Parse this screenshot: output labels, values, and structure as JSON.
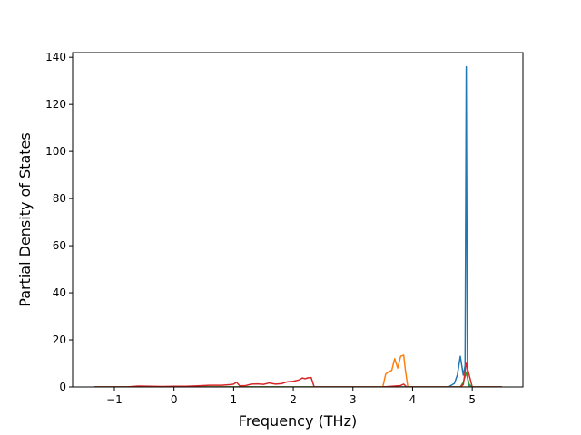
{
  "chart_data": {
    "type": "line",
    "title": "",
    "xlabel": "Frequency (THz)",
    "ylabel": "Partial Density of States",
    "xlim": [
      -1.7,
      5.85
    ],
    "ylim": [
      0,
      142
    ],
    "xticks": [
      -1,
      0,
      1,
      2,
      3,
      4,
      5
    ],
    "yticks": [
      0,
      20,
      40,
      60,
      80,
      100,
      120,
      140
    ],
    "xtick_labels": [
      "−1",
      "0",
      "1",
      "2",
      "3",
      "4",
      "5"
    ],
    "ytick_labels": [
      "0",
      "20",
      "40",
      "60",
      "80",
      "100",
      "120",
      "140"
    ],
    "grid": false,
    "legend": "none",
    "series": [
      {
        "color": "#1f77b4",
        "x": [
          -1.35,
          3.0,
          4.6,
          4.7,
          4.75,
          4.8,
          4.85,
          4.88,
          4.9,
          4.92,
          4.95,
          5.0,
          5.5
        ],
        "y": [
          0,
          0,
          0,
          1.5,
          5,
          13,
          5,
          9,
          136,
          4,
          0,
          0,
          0
        ]
      },
      {
        "color": "#ff7f0e",
        "x": [
          -1.35,
          3.4,
          3.5,
          3.55,
          3.6,
          3.65,
          3.7,
          3.75,
          3.8,
          3.85,
          3.88,
          3.92,
          5.5
        ],
        "y": [
          0,
          0,
          0,
          5.5,
          6.5,
          7,
          12,
          8,
          13,
          13.5,
          7,
          0,
          0
        ]
      },
      {
        "color": "#2ca02c",
        "x": [
          -1.35,
          4.8,
          4.85,
          4.9,
          4.95,
          5.0,
          5.5
        ],
        "y": [
          0,
          0,
          2,
          6,
          1,
          0,
          0
        ]
      },
      {
        "color": "#d62728",
        "x": [
          -1.35,
          -0.8,
          -0.6,
          -0.4,
          -0.2,
          0.0,
          0.2,
          0.4,
          0.6,
          0.8,
          0.95,
          1.0,
          1.05,
          1.1,
          1.2,
          1.3,
          1.4,
          1.5,
          1.6,
          1.7,
          1.8,
          1.9,
          2.0,
          2.1,
          2.15,
          2.2,
          2.25,
          2.3,
          2.35,
          3.5,
          3.7,
          3.8,
          3.85,
          3.9,
          4.8,
          4.85,
          4.9,
          4.95,
          5.0,
          5.5
        ],
        "y": [
          0,
          0,
          0.4,
          0.3,
          0.2,
          0.3,
          0.3,
          0.5,
          0.7,
          0.7,
          1.0,
          1.2,
          2.0,
          0.5,
          0.6,
          1.2,
          1.3,
          1.1,
          1.7,
          1.2,
          1.4,
          2.2,
          2.4,
          3.0,
          3.8,
          3.5,
          3.9,
          4.0,
          0,
          0,
          0.4,
          0.6,
          1.2,
          0,
          0,
          1,
          10,
          5,
          0,
          0
        ]
      }
    ]
  }
}
